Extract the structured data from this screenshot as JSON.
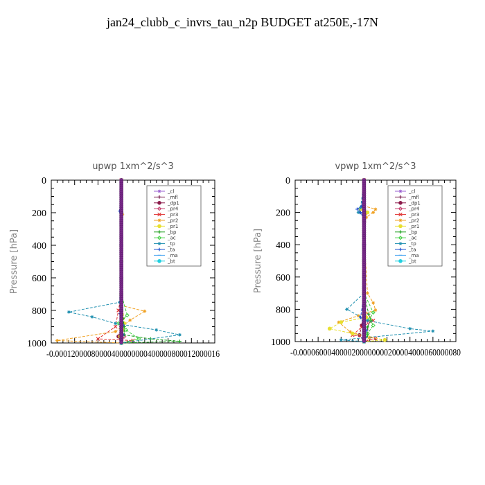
{
  "title": "jan24_clubb_c_invrs_tau_n2p  BUDGET at250E,-17N",
  "legend_entries": [
    {
      "name": "_cl",
      "color": "#9a5fd0",
      "symbol": "star"
    },
    {
      "name": "_mfl",
      "color": "#7a1f4e",
      "symbol": "plus"
    },
    {
      "name": "_dp1",
      "color": "#8b1a4a",
      "symbol": "circle"
    },
    {
      "name": "_pr4",
      "color": "#c23a6a",
      "symbol": "diamond"
    },
    {
      "name": "_pr3",
      "color": "#e03030",
      "symbol": "x"
    },
    {
      "name": "_pr2",
      "color": "#f0a020",
      "symbol": "star"
    },
    {
      "name": "_pr1",
      "color": "#e8e030",
      "symbol": "circle"
    },
    {
      "name": "_bp",
      "color": "#20a020",
      "symbol": "plus"
    },
    {
      "name": "_ac",
      "color": "#40d040",
      "symbol": "diamond"
    },
    {
      "name": "_tp",
      "color": "#2090b0",
      "symbol": "star"
    },
    {
      "name": "_ta",
      "color": "#2050d0",
      "symbol": "plus"
    },
    {
      "name": "_ma",
      "color": "#40a0f0",
      "symbol": "dash"
    },
    {
      "name": "_bt",
      "color": "#20d0e0",
      "symbol": "circle"
    }
  ],
  "chart_data": [
    {
      "type": "line",
      "title": "upwp   1xm^2/s^3",
      "xlabel": "",
      "ylabel": "Pressure [hPa]",
      "xlim": [
        -0.00012,
        0.00016
      ],
      "ylim": [
        1000,
        0
      ],
      "x_ticks": [
        "-0.00012",
        "-0.00008",
        "-0.00004",
        "0",
        "0.00004",
        "0.00008",
        "0.00012",
        "0.00016"
      ],
      "x_tick_text": "-0.00012000080000400000000400000800012000016",
      "y_ticks": [
        0,
        200,
        400,
        600,
        800,
        1000
      ],
      "legend_position": "top-right",
      "series": [
        {
          "name": "_cl",
          "x": [
            0,
            0,
            0,
            0,
            0,
            0,
            0,
            0
          ],
          "y": [
            0,
            200,
            400,
            600,
            800,
            900,
            950,
            1000
          ]
        },
        {
          "name": "_mfl",
          "x": [
            0,
            0,
            0,
            0,
            0,
            0,
            0,
            0
          ],
          "y": [
            0,
            200,
            400,
            600,
            800,
            900,
            950,
            1000
          ]
        },
        {
          "name": "_dp1",
          "x": [
            0,
            0,
            0,
            0,
            0,
            0,
            -5e-06,
            0
          ],
          "y": [
            0,
            200,
            400,
            600,
            800,
            900,
            960,
            1000
          ]
        },
        {
          "name": "_pr4",
          "x": [
            0,
            0,
            0,
            0,
            0,
            0,
            5e-06,
            0
          ],
          "y": [
            0,
            200,
            400,
            600,
            800,
            900,
            960,
            1000
          ]
        },
        {
          "name": "_pr3",
          "x": [
            0,
            0,
            0,
            0,
            -5e-06,
            -1e-05,
            -4e-05,
            2e-05,
            0
          ],
          "y": [
            0,
            200,
            400,
            700,
            800,
            900,
            975,
            985,
            1000
          ]
        },
        {
          "name": "_pr2",
          "x": [
            0,
            0,
            2e-06,
            0,
            0,
            4e-05,
            1.5e-05,
            -1e-05,
            -0.00011,
            0
          ],
          "y": [
            0,
            190,
            210,
            700,
            770,
            805,
            860,
            930,
            985,
            1000
          ]
        },
        {
          "name": "_pr1",
          "x": [
            0,
            0,
            0,
            0,
            5e-06,
            3e-06,
            -2e-06,
            0
          ],
          "y": [
            0,
            200,
            500,
            700,
            880,
            920,
            960,
            1000
          ]
        },
        {
          "name": "_bp",
          "x": [
            0,
            0,
            0,
            0,
            3e-06,
            5e-06,
            5e-06,
            5e-05,
            0.0001,
            0
          ],
          "y": [
            0,
            200,
            500,
            700,
            850,
            900,
            950,
            975,
            990,
            1000
          ]
        },
        {
          "name": "_ac",
          "x": [
            0,
            0,
            0,
            0,
            1e-05,
            -5e-06,
            8e-06,
            3e-05,
            0
          ],
          "y": [
            0,
            200,
            500,
            700,
            830,
            880,
            920,
            975,
            1000
          ]
        },
        {
          "name": "_tp",
          "x": [
            0,
            0,
            0,
            -3e-06,
            -9e-05,
            -5e-05,
            -1e-05,
            6e-05,
            0.0001,
            0
          ],
          "y": [
            0,
            200,
            500,
            750,
            810,
            840,
            880,
            920,
            950,
            1000
          ]
        },
        {
          "name": "_ta",
          "x": [
            0,
            -3e-06,
            0,
            0,
            -2e-06,
            3e-06,
            3e-06,
            0
          ],
          "y": [
            0,
            190,
            210,
            700,
            820,
            890,
            950,
            1000
          ]
        },
        {
          "name": "_ma",
          "x": [
            0,
            0,
            0,
            0,
            0,
            0,
            0
          ],
          "y": [
            0,
            200,
            400,
            600,
            800,
            900,
            1000
          ]
        },
        {
          "name": "_bt",
          "x": [
            0,
            0,
            0,
            0,
            0,
            0,
            0,
            0
          ],
          "y": [
            0,
            200,
            400,
            600,
            800,
            900,
            950,
            1000
          ]
        }
      ]
    },
    {
      "type": "line",
      "title": "vpwp   1xm^2/s^3",
      "xlabel": "",
      "ylabel": "Pressure [hPa]",
      "xlim": [
        -6e-05,
        8e-05
      ],
      "ylim": [
        1000,
        0
      ],
      "x_ticks": [
        "-0.00006",
        "-0.00004",
        "-0.00002",
        "0",
        "0.00002",
        "0.00004",
        "0.00006",
        "0.00008"
      ],
      "x_tick_text": "-0.0000600040000200000000200004000060000080",
      "y_ticks": [
        0,
        200,
        400,
        600,
        800,
        1000
      ],
      "legend_position": "top-right",
      "series": [
        {
          "name": "_cl",
          "x": [
            0,
            0,
            0,
            0,
            0,
            0,
            0,
            0
          ],
          "y": [
            0,
            200,
            400,
            600,
            800,
            900,
            950,
            1000
          ]
        },
        {
          "name": "_mfl",
          "x": [
            0,
            0,
            0,
            0,
            0,
            0,
            0,
            0
          ],
          "y": [
            0,
            200,
            400,
            600,
            800,
            900,
            950,
            1000
          ]
        },
        {
          "name": "_dp1",
          "x": [
            0,
            0,
            0,
            0,
            0,
            -2e-06,
            -4e-06,
            0
          ],
          "y": [
            0,
            200,
            400,
            600,
            800,
            900,
            960,
            1000
          ]
        },
        {
          "name": "_pr4",
          "x": [
            0,
            0,
            2e-06,
            0,
            0,
            4e-06,
            3e-06,
            0
          ],
          "y": [
            0,
            180,
            200,
            400,
            800,
            880,
            950,
            1000
          ]
        },
        {
          "name": "_pr3",
          "x": [
            0,
            0,
            0,
            0,
            0,
            8e-06,
            -2e-06,
            -1e-05,
            1e-05,
            0
          ],
          "y": [
            0,
            200,
            400,
            700,
            800,
            870,
            910,
            960,
            980,
            1000
          ]
        },
        {
          "name": "_pr2",
          "x": [
            0,
            0,
            1e-05,
            8e-06,
            2e-06,
            0,
            0,
            3e-06,
            8e-06,
            1e-05,
            -5e-06,
            -2.2e-05,
            -1.2e-05,
            5e-06,
            0
          ],
          "y": [
            0,
            160,
            180,
            200,
            230,
            260,
            340,
            700,
            760,
            805,
            840,
            880,
            940,
            975,
            1000
          ]
        },
        {
          "name": "_pr1",
          "x": [
            0,
            0,
            -3e-06,
            3e-06,
            0,
            0,
            2e-06,
            -2e-05,
            -3e-05,
            -1e-05,
            1.8e-05,
            0
          ],
          "y": [
            0,
            150,
            180,
            200,
            250,
            700,
            850,
            880,
            920,
            950,
            990,
            1000
          ]
        },
        {
          "name": "_bp",
          "x": [
            0,
            0,
            0,
            0,
            4e-06,
            6e-06,
            3e-06,
            3e-06,
            0
          ],
          "y": [
            0,
            200,
            500,
            700,
            830,
            870,
            910,
            960,
            1000
          ]
        },
        {
          "name": "_ac",
          "x": [
            0,
            0,
            0,
            0,
            8e-06,
            5e-06,
            8e-06,
            3e-06,
            0
          ],
          "y": [
            0,
            200,
            500,
            700,
            820,
            860,
            900,
            950,
            1000
          ]
        },
        {
          "name": "_tp",
          "x": [
            0,
            -3e-06,
            -5e-06,
            0,
            0,
            -1.5e-05,
            3e-06,
            4e-05,
            6e-05,
            -2e-05,
            0
          ],
          "y": [
            0,
            170,
            200,
            230,
            700,
            800,
            870,
            920,
            935,
            990,
            1000
          ]
        },
        {
          "name": "_ta",
          "x": [
            0,
            -2e-06,
            -6e-06,
            -3e-06,
            0,
            0,
            -3e-06,
            2e-06,
            0
          ],
          "y": [
            0,
            160,
            180,
            200,
            240,
            700,
            850,
            930,
            1000
          ]
        },
        {
          "name": "_ma",
          "x": [
            0,
            0,
            0,
            0,
            0,
            0,
            0
          ],
          "y": [
            0,
            200,
            400,
            600,
            800,
            900,
            1000
          ]
        },
        {
          "name": "_bt",
          "x": [
            0,
            0,
            0,
            0,
            0,
            0,
            0,
            0
          ],
          "y": [
            0,
            200,
            400,
            600,
            800,
            900,
            950,
            1000
          ]
        }
      ]
    }
  ]
}
